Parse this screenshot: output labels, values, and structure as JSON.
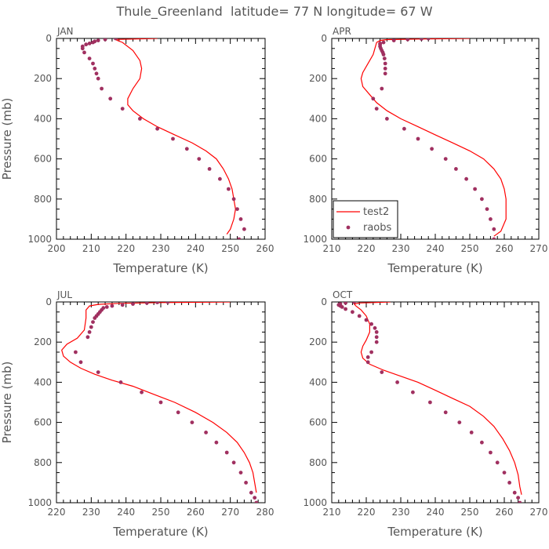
{
  "title": "Thule_Greenland  latitude= 77 N longitude= 67 W",
  "colors": {
    "model": "#ff0000",
    "obs": "#a03060",
    "axis": "#000000",
    "text": "#555555"
  },
  "legend": {
    "model_label": "test2",
    "obs_label": "raobs"
  },
  "chart_data": [
    {
      "type": "scatter",
      "title": "JAN",
      "xlabel": "Temperature (K)",
      "ylabel": "Pressure (mb)",
      "xlim": [
        200,
        260
      ],
      "ylim": [
        1000,
        0
      ],
      "xticks": [
        "200",
        "210",
        "220",
        "230",
        "240",
        "250",
        "260"
      ],
      "yticks": [
        "0",
        "200",
        "400",
        "600",
        "800",
        "1000"
      ],
      "series": [
        {
          "kind": "line",
          "x": [
            229,
            222,
            217,
            217.5,
            219,
            222,
            224,
            224.5,
            224,
            222,
            220.5,
            220.5,
            222,
            225,
            229,
            234,
            239,
            243,
            246,
            248,
            249.5,
            250.5,
            251,
            251.5,
            251,
            250,
            249
          ],
          "y": [
            0,
            3,
            5,
            10,
            20,
            60,
            110,
            150,
            200,
            250,
            300,
            330,
            360,
            400,
            440,
            480,
            520,
            560,
            600,
            650,
            700,
            750,
            800,
            850,
            900,
            950,
            975
          ]
        },
        {
          "kind": "points",
          "x": [
            217,
            214,
            212,
            211,
            210.5,
            209.5,
            208.5,
            207.5,
            207.5,
            208,
            209.5,
            210.5,
            211,
            211.5,
            212,
            213,
            215.5,
            219,
            224,
            229,
            233.5,
            237.5,
            241,
            244,
            247,
            249.5,
            251,
            252,
            253,
            254,
            252.5
          ],
          "y": [
            0,
            5,
            10,
            15,
            20,
            25,
            30,
            40,
            50,
            70,
            100,
            125,
            150,
            175,
            200,
            250,
            300,
            350,
            400,
            450,
            500,
            550,
            600,
            650,
            700,
            750,
            800,
            850,
            900,
            950,
            1000
          ]
        }
      ]
    },
    {
      "type": "scatter",
      "title": "APR",
      "xlabel": "Temperature (K)",
      "ylabel": "",
      "xlim": [
        210,
        270
      ],
      "ylim": [
        1000,
        0
      ],
      "xticks": [
        "210",
        "220",
        "230",
        "240",
        "250",
        "260",
        "270"
      ],
      "yticks": [
        "0",
        "200",
        "400",
        "600",
        "800",
        "1000"
      ],
      "series": [
        {
          "kind": "line",
          "x": [
            250,
            235,
            226,
            224,
            223,
            222.5,
            222,
            221,
            220,
            219,
            218.5,
            219,
            221,
            223,
            226,
            230,
            235,
            240,
            245,
            250,
            254,
            257,
            259,
            260,
            260.5,
            260.5,
            259,
            257
          ],
          "y": [
            0,
            3,
            6,
            10,
            20,
            50,
            80,
            110,
            140,
            170,
            200,
            240,
            280,
            320,
            360,
            400,
            440,
            480,
            520,
            560,
            600,
            650,
            700,
            750,
            800,
            900,
            960,
            985
          ]
        },
        {
          "kind": "points",
          "x": [
            238,
            236,
            232,
            228,
            225,
            224,
            224,
            224,
            224.2,
            224.5,
            224.8,
            225,
            225.3,
            225.5,
            225.5,
            225.5,
            224.5,
            222,
            223,
            226,
            231,
            235,
            239,
            243,
            246,
            249,
            251.5,
            253.5,
            255,
            256,
            257,
            257
          ],
          "y": [
            0,
            2,
            5,
            10,
            20,
            25,
            30,
            40,
            50,
            60,
            70,
            80,
            100,
            125,
            150,
            175,
            250,
            300,
            350,
            400,
            450,
            500,
            550,
            600,
            650,
            700,
            750,
            800,
            850,
            900,
            950,
            1000
          ]
        }
      ]
    },
    {
      "type": "scatter",
      "title": "JUL",
      "xlabel": "Temperature (K)",
      "ylabel": "Pressure (mb)",
      "xlim": [
        220,
        280
      ],
      "ylim": [
        1000,
        0
      ],
      "xticks": [
        "220",
        "230",
        "240",
        "250",
        "260",
        "270",
        "280"
      ],
      "yticks": [
        "0",
        "200",
        "400",
        "600",
        "800",
        "1000"
      ],
      "series": [
        {
          "kind": "line",
          "x": [
            270,
            250,
            238,
            232,
            229.5,
            228.5,
            228.5,
            228,
            226,
            223,
            221.5,
            222,
            224,
            227,
            231,
            236,
            242,
            248,
            254,
            260,
            265,
            269,
            272,
            274,
            275.5,
            276.5,
            277,
            277.5
          ],
          "y": [
            0,
            3,
            7,
            12,
            20,
            40,
            80,
            140,
            180,
            210,
            240,
            270,
            300,
            330,
            360,
            390,
            420,
            460,
            500,
            550,
            600,
            650,
            700,
            750,
            800,
            850,
            900,
            950
          ]
        },
        {
          "kind": "points",
          "x": [
            252,
            249,
            246,
            242,
            239,
            236,
            234.5,
            233.5,
            233,
            232.5,
            232,
            231.5,
            231,
            230.5,
            230,
            229.5,
            229,
            225.5,
            227,
            232,
            238.5,
            244.5,
            250,
            255,
            259,
            263,
            266,
            269,
            271,
            273,
            274.5,
            276,
            277,
            277.5
          ],
          "y": [
            0,
            2,
            5,
            10,
            15,
            20,
            25,
            30,
            40,
            50,
            60,
            70,
            80,
            100,
            125,
            150,
            175,
            250,
            300,
            350,
            400,
            450,
            500,
            550,
            600,
            650,
            700,
            750,
            800,
            850,
            900,
            950,
            975,
            1000
          ]
        }
      ]
    },
    {
      "type": "scatter",
      "title": "OCT",
      "xlabel": "Temperature (K)",
      "ylabel": "",
      "xlim": [
        210,
        270
      ],
      "ylim": [
        1000,
        0
      ],
      "xticks": [
        "210",
        "220",
        "230",
        "240",
        "250",
        "260",
        "270"
      ],
      "yticks": [
        "0",
        "200",
        "400",
        "600",
        "800",
        "1000"
      ],
      "series": [
        {
          "kind": "line",
          "x": [
            227,
            222,
            218,
            216.5,
            217,
            218.5,
            220,
            221,
            221,
            220,
            219,
            218.5,
            219,
            221,
            225,
            230,
            235,
            240,
            245,
            250,
            254,
            257,
            259.5,
            261.5,
            263,
            264,
            264.5,
            265
          ],
          "y": [
            0,
            3,
            5,
            10,
            20,
            40,
            70,
            110,
            150,
            190,
            220,
            250,
            280,
            310,
            340,
            370,
            400,
            440,
            480,
            520,
            570,
            620,
            680,
            740,
            800,
            860,
            920,
            960
          ]
        },
        {
          "kind": "points",
          "x": [
            216.5,
            214,
            212.5,
            212,
            212.5,
            213,
            214,
            216,
            218,
            220,
            221.5,
            222.5,
            223,
            223,
            223,
            221.5,
            220.5,
            220.5,
            224.5,
            229,
            233.5,
            238.5,
            243,
            247,
            250.5,
            253.5,
            256,
            258,
            260,
            261.5,
            263,
            264,
            264.5
          ],
          "y": [
            0,
            5,
            10,
            15,
            20,
            25,
            35,
            50,
            70,
            90,
            110,
            130,
            150,
            175,
            200,
            250,
            275,
            300,
            350,
            400,
            450,
            500,
            550,
            600,
            650,
            700,
            750,
            800,
            850,
            900,
            950,
            975,
            1000
          ]
        }
      ]
    }
  ]
}
